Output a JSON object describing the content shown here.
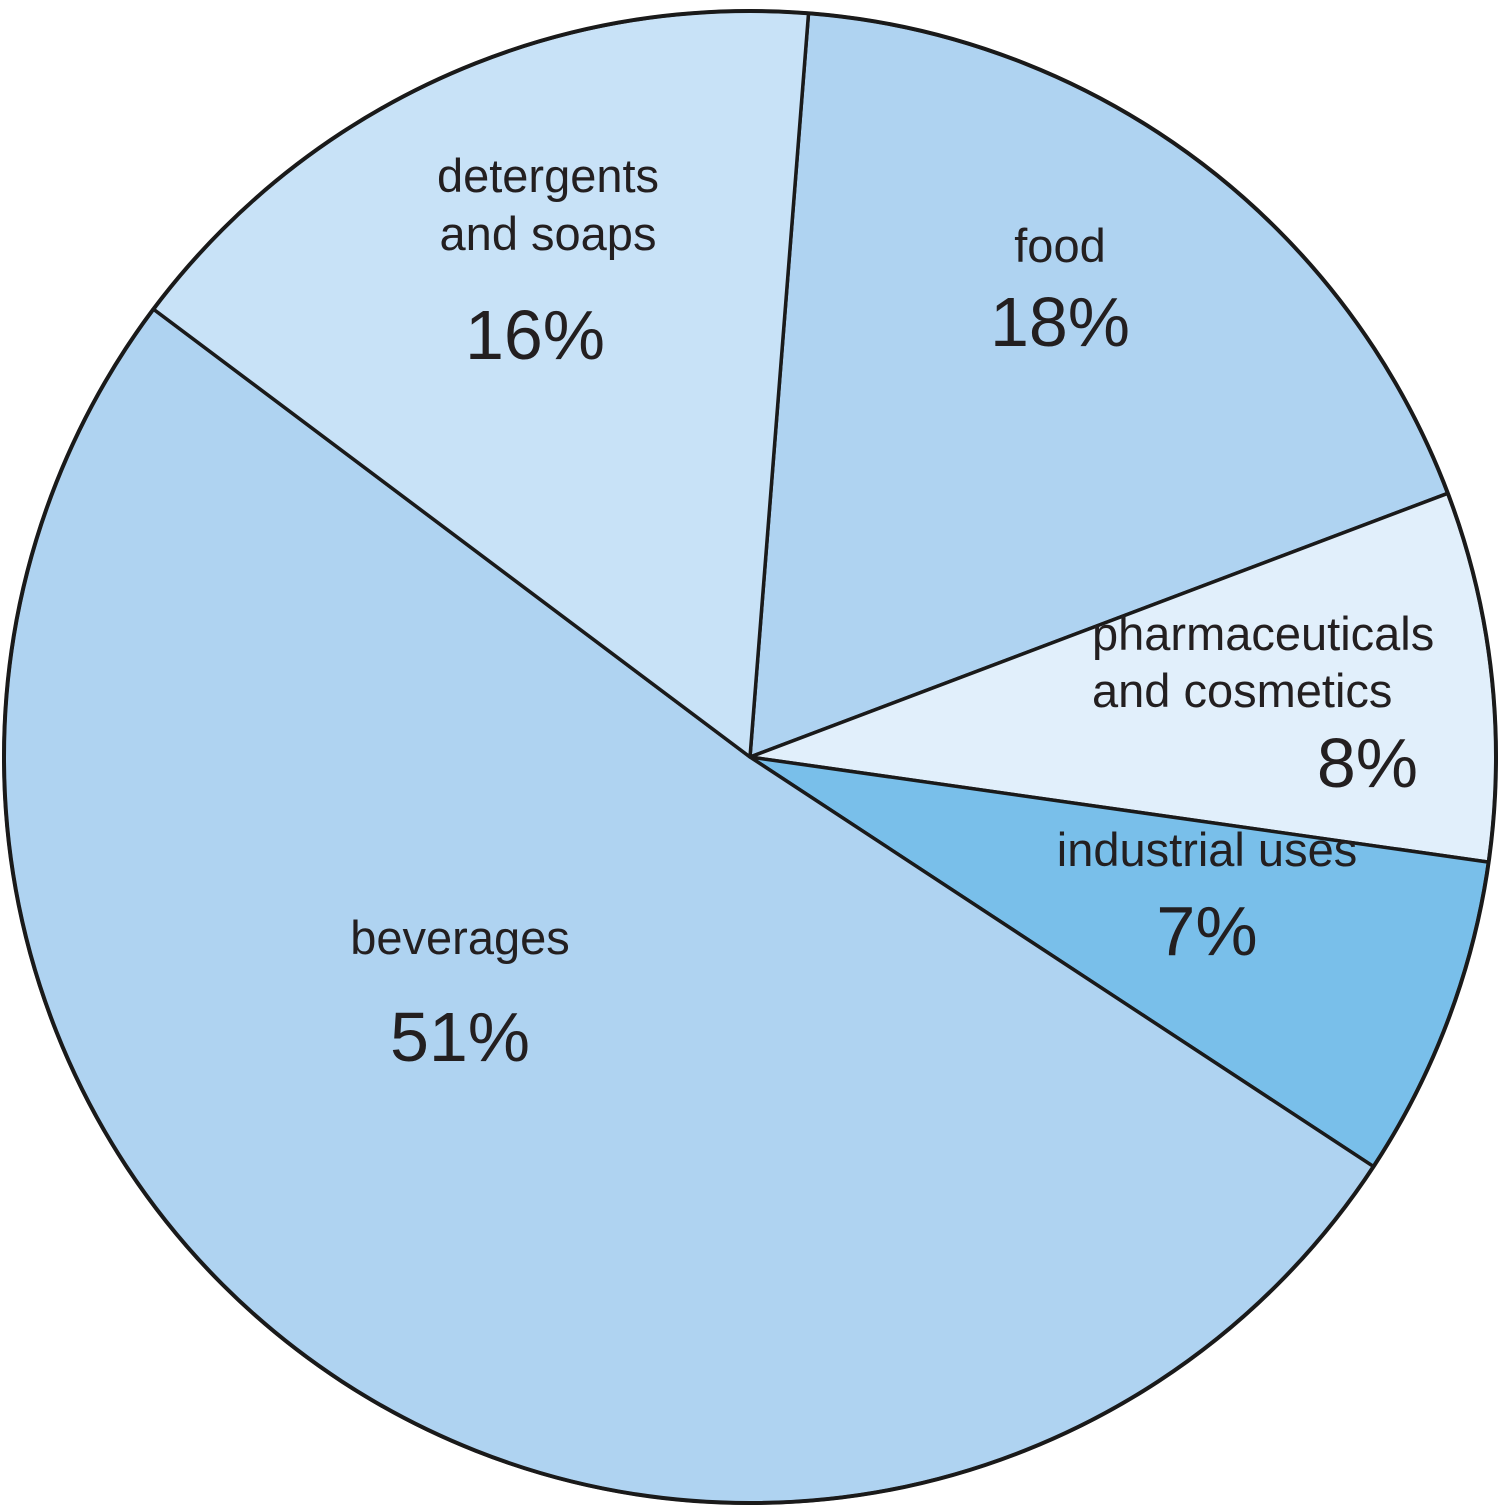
{
  "chart_data": {
    "type": "pie",
    "slices": [
      {
        "label": [
          "food"
        ],
        "value": 18,
        "value_label": "18%",
        "color": "#afd3f1"
      },
      {
        "label": [
          "pharmaceuticals",
          "and cosmetics"
        ],
        "value": 8,
        "value_label": "8%",
        "color": "#e1effb"
      },
      {
        "label": [
          "industrial uses"
        ],
        "value": 7,
        "value_label": "7%",
        "color": "#79bfea"
      },
      {
        "label": [
          "beverages"
        ],
        "value": 51,
        "value_label": "51%",
        "color": "#afd3f1"
      },
      {
        "label": [
          "detergents",
          "and soaps"
        ],
        "value": 16,
        "value_label": "16%",
        "color": "#c8e2f7"
      }
    ],
    "start_angle_deg": 4.5,
    "direction": "clockwise",
    "legend": "none"
  }
}
